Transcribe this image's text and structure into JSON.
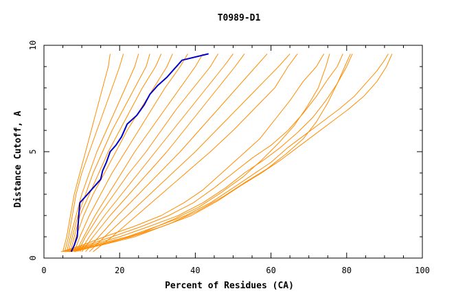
{
  "chart_data": {
    "type": "line",
    "title": "T0989-D1",
    "xlabel": "Percent of Residues (CA)",
    "ylabel": "Distance Cutoff, A",
    "xlim": [
      0,
      100
    ],
    "ylim": [
      0,
      10
    ],
    "x_ticks": [
      "0",
      "20",
      "40",
      "60",
      "80",
      "100"
    ],
    "y_ticks": [
      "0",
      "5",
      "10"
    ],
    "grid": false,
    "colors": {
      "highlight": "#0000cc",
      "others": "#ff8c00"
    },
    "series": [
      {
        "highlight": true,
        "points": [
          [
            7.2,
            0.3
          ],
          [
            8.0,
            0.6
          ],
          [
            8.8,
            1.0
          ],
          [
            9.0,
            1.5
          ],
          [
            9.2,
            2.0
          ],
          [
            9.5,
            2.6
          ],
          [
            11.5,
            3.0
          ],
          [
            13.0,
            3.3
          ],
          [
            15.0,
            3.7
          ],
          [
            15.5,
            4.1
          ],
          [
            16.5,
            4.5
          ],
          [
            17.5,
            5.0
          ],
          [
            19.0,
            5.3
          ],
          [
            20.5,
            5.7
          ],
          [
            22.0,
            6.3
          ],
          [
            24.5,
            6.7
          ],
          [
            26.5,
            7.2
          ],
          [
            28.0,
            7.7
          ],
          [
            30.0,
            8.1
          ],
          [
            32.5,
            8.5
          ],
          [
            34.5,
            8.9
          ],
          [
            36.5,
            9.3
          ],
          [
            43.5,
            9.6
          ]
        ]
      },
      {
        "points": [
          [
            5.0,
            0.3
          ],
          [
            6.0,
            1.0
          ],
          [
            7.0,
            2.0
          ],
          [
            8.0,
            3.0
          ],
          [
            9.5,
            4.0
          ],
          [
            11.0,
            5.0
          ],
          [
            12.5,
            6.0
          ],
          [
            14.0,
            7.0
          ],
          [
            15.5,
            8.0
          ],
          [
            17.0,
            9.0
          ],
          [
            17.5,
            9.6
          ]
        ]
      },
      {
        "points": [
          [
            5.5,
            0.3
          ],
          [
            6.5,
            1.0
          ],
          [
            7.5,
            2.0
          ],
          [
            8.5,
            3.0
          ],
          [
            10.0,
            4.0
          ],
          [
            12.0,
            5.0
          ],
          [
            14.0,
            6.0
          ],
          [
            16.0,
            7.0
          ],
          [
            18.0,
            8.0
          ],
          [
            20.0,
            9.0
          ],
          [
            21.0,
            9.6
          ]
        ]
      },
      {
        "points": [
          [
            6.0,
            0.3
          ],
          [
            7.0,
            1.0
          ],
          [
            8.5,
            2.0
          ],
          [
            10.0,
            3.0
          ],
          [
            12.0,
            4.0
          ],
          [
            14.0,
            5.0
          ],
          [
            16.5,
            6.0
          ],
          [
            19.0,
            7.0
          ],
          [
            21.5,
            8.0
          ],
          [
            24.0,
            9.0
          ],
          [
            25.0,
            9.6
          ]
        ]
      },
      {
        "points": [
          [
            6.5,
            0.3
          ],
          [
            7.5,
            1.0
          ],
          [
            9.0,
            2.0
          ],
          [
            11.0,
            3.0
          ],
          [
            13.0,
            4.0
          ],
          [
            15.5,
            5.0
          ],
          [
            18.0,
            6.0
          ],
          [
            21.0,
            7.0
          ],
          [
            24.0,
            8.0
          ],
          [
            27.0,
            9.0
          ],
          [
            28.0,
            9.6
          ]
        ]
      },
      {
        "points": [
          [
            7.0,
            0.3
          ],
          [
            8.0,
            1.0
          ],
          [
            9.5,
            2.0
          ],
          [
            12.0,
            3.0
          ],
          [
            14.5,
            4.0
          ],
          [
            17.0,
            5.0
          ],
          [
            20.0,
            6.0
          ],
          [
            23.0,
            7.0
          ],
          [
            26.0,
            8.0
          ],
          [
            29.5,
            9.0
          ],
          [
            31.0,
            9.6
          ]
        ]
      },
      {
        "points": [
          [
            7.5,
            0.3
          ],
          [
            8.5,
            1.0
          ],
          [
            10.5,
            2.0
          ],
          [
            13.0,
            3.0
          ],
          [
            16.0,
            4.0
          ],
          [
            19.0,
            5.0
          ],
          [
            22.0,
            6.0
          ],
          [
            25.5,
            7.0
          ],
          [
            29.0,
            8.0
          ],
          [
            32.5,
            9.0
          ],
          [
            34.0,
            9.6
          ]
        ]
      },
      {
        "points": [
          [
            8.0,
            0.3
          ],
          [
            9.5,
            1.0
          ],
          [
            12.0,
            2.0
          ],
          [
            15.0,
            3.0
          ],
          [
            18.0,
            4.0
          ],
          [
            21.5,
            5.0
          ],
          [
            25.0,
            6.0
          ],
          [
            28.5,
            7.0
          ],
          [
            32.0,
            8.0
          ],
          [
            36.0,
            9.0
          ],
          [
            38.0,
            9.6
          ]
        ]
      },
      {
        "points": [
          [
            8.5,
            0.3
          ],
          [
            10.5,
            1.0
          ],
          [
            13.5,
            2.0
          ],
          [
            17.0,
            3.0
          ],
          [
            20.5,
            4.0
          ],
          [
            24.0,
            5.0
          ],
          [
            28.0,
            6.0
          ],
          [
            32.0,
            7.0
          ],
          [
            36.0,
            8.0
          ],
          [
            40.0,
            9.0
          ],
          [
            42.0,
            9.6
          ]
        ]
      },
      {
        "points": [
          [
            9.0,
            0.3
          ],
          [
            11.0,
            1.0
          ],
          [
            14.5,
            2.0
          ],
          [
            18.5,
            3.0
          ],
          [
            22.5,
            4.0
          ],
          [
            27.0,
            5.0
          ],
          [
            31.0,
            6.0
          ],
          [
            35.0,
            7.0
          ],
          [
            39.5,
            8.0
          ],
          [
            44.0,
            9.0
          ],
          [
            46.0,
            9.6
          ]
        ]
      },
      {
        "points": [
          [
            9.5,
            0.3
          ],
          [
            12.0,
            1.0
          ],
          [
            16.0,
            2.0
          ],
          [
            20.5,
            3.0
          ],
          [
            25.0,
            4.0
          ],
          [
            29.5,
            5.0
          ],
          [
            34.0,
            6.0
          ],
          [
            38.5,
            7.0
          ],
          [
            43.0,
            8.0
          ],
          [
            47.5,
            9.0
          ],
          [
            50.0,
            9.6
          ]
        ]
      },
      {
        "points": [
          [
            10.0,
            0.3
          ],
          [
            13.0,
            1.0
          ],
          [
            17.5,
            2.0
          ],
          [
            22.5,
            3.0
          ],
          [
            27.5,
            4.0
          ],
          [
            32.5,
            5.0
          ],
          [
            37.0,
            6.0
          ],
          [
            41.5,
            7.0
          ],
          [
            46.0,
            8.0
          ],
          [
            50.5,
            9.0
          ],
          [
            53.0,
            9.6
          ]
        ]
      },
      {
        "points": [
          [
            11.0,
            0.3
          ],
          [
            14.5,
            1.0
          ],
          [
            19.5,
            2.0
          ],
          [
            25.0,
            3.0
          ],
          [
            30.5,
            4.0
          ],
          [
            36.0,
            5.0
          ],
          [
            41.0,
            6.0
          ],
          [
            46.0,
            7.0
          ],
          [
            51.0,
            8.0
          ],
          [
            56.0,
            9.0
          ],
          [
            59.0,
            9.6
          ]
        ]
      },
      {
        "points": [
          [
            12.0,
            0.3
          ],
          [
            16.0,
            1.0
          ],
          [
            22.0,
            2.0
          ],
          [
            28.0,
            3.0
          ],
          [
            34.0,
            4.0
          ],
          [
            40.0,
            5.0
          ],
          [
            45.5,
            6.0
          ],
          [
            51.0,
            7.0
          ],
          [
            56.5,
            8.0
          ],
          [
            62.0,
            9.0
          ],
          [
            65.0,
            9.6
          ]
        ]
      },
      {
        "points": [
          [
            13.0,
            0.3
          ],
          [
            18.0,
            1.0
          ],
          [
            24.5,
            2.0
          ],
          [
            31.0,
            3.0
          ],
          [
            37.5,
            4.0
          ],
          [
            44.0,
            5.0
          ],
          [
            50.0,
            6.0
          ],
          [
            55.5,
            7.0
          ],
          [
            61.0,
            8.0
          ],
          [
            64.5,
            9.0
          ],
          [
            67.0,
            9.6
          ]
        ]
      },
      {
        "points": [
          [
            4.5,
            0.3
          ],
          [
            10.0,
            0.6
          ],
          [
            16.0,
            1.0
          ],
          [
            24.0,
            1.5
          ],
          [
            31.0,
            2.0
          ],
          [
            37.0,
            2.6
          ],
          [
            42.0,
            3.2
          ],
          [
            47.0,
            4.0
          ],
          [
            52.0,
            4.8
          ],
          [
            57.0,
            5.6
          ],
          [
            61.0,
            6.5
          ],
          [
            65.0,
            7.4
          ],
          [
            68.5,
            8.3
          ],
          [
            72.0,
            9.0
          ],
          [
            74.0,
            9.6
          ]
        ]
      },
      {
        "points": [
          [
            5.0,
            0.3
          ],
          [
            11.0,
            0.6
          ],
          [
            18.0,
            1.0
          ],
          [
            26.0,
            1.5
          ],
          [
            33.0,
            2.0
          ],
          [
            39.5,
            2.6
          ],
          [
            45.0,
            3.3
          ],
          [
            50.0,
            4.0
          ],
          [
            55.0,
            4.7
          ],
          [
            60.0,
            5.3
          ],
          [
            64.5,
            6.0
          ],
          [
            68.5,
            6.8
          ],
          [
            72.0,
            7.6
          ],
          [
            75.0,
            8.4
          ],
          [
            77.5,
            9.0
          ],
          [
            79.0,
            9.6
          ]
        ]
      },
      {
        "points": [
          [
            5.5,
            0.3
          ],
          [
            12.0,
            0.6
          ],
          [
            20.0,
            1.0
          ],
          [
            28.0,
            1.5
          ],
          [
            35.5,
            2.0
          ],
          [
            42.0,
            2.6
          ],
          [
            48.0,
            3.3
          ],
          [
            53.0,
            4.0
          ],
          [
            58.0,
            4.6
          ],
          [
            62.5,
            5.2
          ],
          [
            67.0,
            5.9
          ],
          [
            71.0,
            6.6
          ],
          [
            74.5,
            7.4
          ],
          [
            77.5,
            8.2
          ],
          [
            80.0,
            9.0
          ],
          [
            81.5,
            9.6
          ]
        ]
      },
      {
        "points": [
          [
            6.0,
            0.3
          ],
          [
            13.0,
            0.6
          ],
          [
            22.0,
            1.0
          ],
          [
            30.0,
            1.5
          ],
          [
            37.5,
            2.0
          ],
          [
            44.0,
            2.6
          ],
          [
            50.0,
            3.3
          ],
          [
            55.0,
            3.9
          ],
          [
            60.0,
            4.5
          ],
          [
            64.5,
            5.2
          ],
          [
            69.0,
            5.8
          ],
          [
            73.5,
            6.4
          ],
          [
            78.0,
            7.0
          ],
          [
            82.0,
            7.6
          ],
          [
            85.0,
            8.2
          ],
          [
            88.0,
            8.8
          ],
          [
            90.0,
            9.3
          ],
          [
            91.0,
            9.6
          ]
        ]
      },
      {
        "points": [
          [
            6.5,
            0.3
          ],
          [
            14.0,
            0.6
          ],
          [
            23.0,
            1.0
          ],
          [
            31.5,
            1.5
          ],
          [
            39.0,
            2.0
          ],
          [
            46.0,
            2.7
          ],
          [
            52.0,
            3.4
          ],
          [
            57.5,
            4.0
          ],
          [
            62.5,
            4.6
          ],
          [
            67.0,
            5.2
          ],
          [
            71.5,
            5.8
          ],
          [
            76.0,
            6.4
          ],
          [
            80.5,
            7.0
          ],
          [
            84.5,
            7.6
          ],
          [
            88.0,
            8.3
          ],
          [
            90.5,
            9.0
          ],
          [
            92.0,
            9.6
          ]
        ]
      },
      {
        "points": [
          [
            7.0,
            0.3
          ],
          [
            15.0,
            0.6
          ],
          [
            24.0,
            1.0
          ],
          [
            33.0,
            1.6
          ],
          [
            40.5,
            2.2
          ],
          [
            47.5,
            2.9
          ],
          [
            53.5,
            3.6
          ],
          [
            59.0,
            4.2
          ],
          [
            64.0,
            4.9
          ],
          [
            68.5,
            5.6
          ],
          [
            72.0,
            6.4
          ],
          [
            75.0,
            7.3
          ],
          [
            77.5,
            8.2
          ],
          [
            79.5,
            9.0
          ],
          [
            81.0,
            9.6
          ]
        ]
      },
      {
        "points": [
          [
            8.0,
            0.3
          ],
          [
            17.0,
            0.7
          ],
          [
            26.0,
            1.2
          ],
          [
            34.0,
            1.8
          ],
          [
            41.0,
            2.4
          ],
          [
            47.0,
            3.1
          ],
          [
            52.5,
            3.8
          ],
          [
            57.5,
            4.6
          ],
          [
            62.0,
            5.4
          ],
          [
            66.0,
            6.2
          ],
          [
            69.5,
            7.1
          ],
          [
            72.5,
            8.0
          ],
          [
            74.5,
            9.0
          ],
          [
            75.5,
            9.6
          ]
        ]
      }
    ]
  }
}
